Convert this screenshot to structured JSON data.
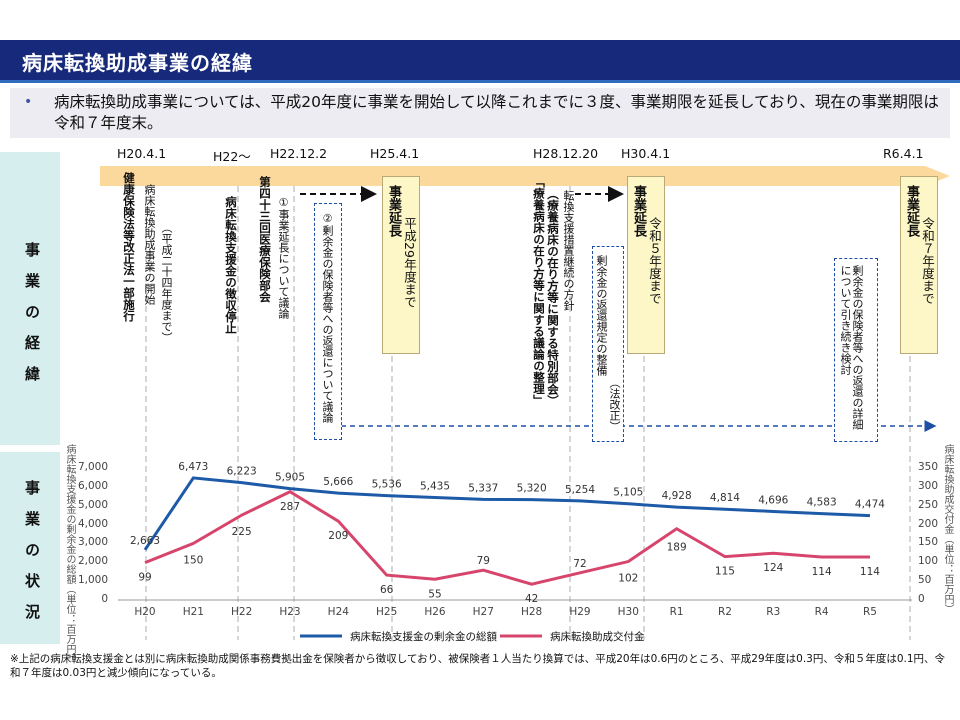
{
  "title": "病床転換助成事業の経緯",
  "intro": {
    "bullet": "•",
    "text": "病床転換助成事業については、平成20年度に事業を開始して以降これまでに３度、事業期限を延長しており、現在の事業期限は令和７年度末。"
  },
  "side_labels": {
    "history": "事業の経緯",
    "status": "事業の状況"
  },
  "timeline": {
    "dates": [
      "H20.4.1",
      "H22〜",
      "H22.12.2",
      "H25.4.1",
      "H28.12.20",
      "H30.4.1",
      "R6.4.1"
    ],
    "events": {
      "e1_bold": "健康保険法等改正法一部施行",
      "e1_note": "病床転換助成事業の開始",
      "e1_paren": "（平成二十四年度まで）",
      "e2": "病床転換支援金の徴収停止",
      "e3": "第四十三回医療保険部会",
      "e4": "①事業延長について議論",
      "e5": "②剰余金の保険者等への返還について議論",
      "e6_bold": "事業延長",
      "e6_rest": "平成29年度まで",
      "e7a": "転換支援措置継続の方針",
      "e7b": "（療養病床の在り方等に関する特別部会）",
      "e7c": "「療養病床の在り方等に関する議論の整理」",
      "e8a": "剰余金の返還規定の整備",
      "e8b": "（法改正）",
      "e9_bold": "事業延長",
      "e9_rest": "令和５年度まで",
      "e10": "剰余金の保険者等への返還の詳細について引き続き検討",
      "e11_bold": "事業延長",
      "e11_rest": "令和７年度まで"
    }
  },
  "colors": {
    "line1": "#1d5aa8",
    "line2": "#d7456c",
    "arrow": "#fbd99d",
    "title_bg": "#16297a"
  },
  "chart_data": {
    "type": "line",
    "categories": [
      "H20",
      "H21",
      "H22",
      "H23",
      "H24",
      "H25",
      "H26",
      "H27",
      "H28",
      "H29",
      "H30",
      "R1",
      "R2",
      "R3",
      "R4",
      "R5"
    ],
    "series": [
      {
        "name": "病床転換支援金の剰余金の総額",
        "axis": "left",
        "values": [
          2663,
          6473,
          6223,
          5905,
          5666,
          5536,
          5435,
          5337,
          5320,
          5254,
          5105,
          4928,
          4814,
          4696,
          4583,
          4474
        ],
        "labels": [
          "2,663",
          "6,473",
          "6,223",
          "5,905",
          "5,666",
          "5,536",
          "5,435",
          "5,337",
          "5,320",
          "5,254",
          "5,105",
          "4,928",
          "4,814",
          "4,696",
          "4,583",
          "4,474"
        ]
      },
      {
        "name": "病床転換助成交付金",
        "axis": "right",
        "values": [
          99,
          150,
          225,
          287,
          209,
          66,
          55,
          79,
          42,
          72,
          102,
          189,
          115,
          124,
          114,
          114
        ],
        "labels": [
          "99",
          "150",
          "225",
          "287",
          "209",
          "66",
          "55",
          "79",
          "42",
          "72",
          "102",
          "189",
          "115",
          "124",
          "114",
          "114"
        ]
      }
    ],
    "ylabel": "病床転換支援金の剰余金の総額（単位：百万円）",
    "ylabel_right": "病床転換助成交付金（単位：百万円）",
    "ylim": [
      0,
      7000
    ],
    "yticks": [
      "7,000",
      "6,000",
      "5,000",
      "4,000",
      "3,000",
      "2,000",
      "1,000",
      "0"
    ],
    "ylim_right": [
      0,
      350
    ],
    "yticks_right": [
      "350",
      "300",
      "250",
      "200",
      "150",
      "100",
      "50",
      "0"
    ],
    "grid": false,
    "legend": "bottom"
  },
  "footnote": "※上記の病床転換支援金とは別に病床転換助成関係事務費拠出金を保険者から徴収しており、被保険者１人当たり換算では、平成20年は0.6円のところ、平成29年度は0.3円、令和５年度は0.1円、令和７年度は0.03円と減少傾向になっている。"
}
